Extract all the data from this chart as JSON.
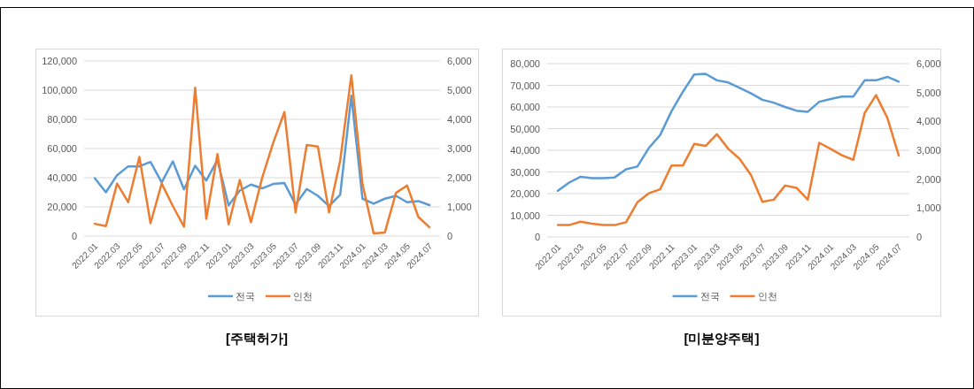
{
  "chart_data": [
    {
      "type": "line",
      "title": "[주택허가]",
      "categories": [
        "2022.01",
        null,
        "2022.03",
        null,
        "2022.05",
        null,
        "2022.07",
        null,
        "2022.09",
        null,
        "2022.11",
        null,
        "2023.01",
        null,
        "2023.03",
        null,
        "2023.05",
        null,
        "2023.07",
        null,
        "2023.09",
        null,
        "2023.11",
        null,
        "2024.01",
        null,
        "2024.03",
        null,
        "2024.05",
        null,
        "2024.07"
      ],
      "series": [
        {
          "name": "전국",
          "color": "#5b9bd5",
          "values": [
            39700,
            30000,
            41700,
            47800,
            47800,
            50800,
            36700,
            51200,
            32000,
            48200,
            38100,
            52200,
            21000,
            31200,
            35300,
            32700,
            35700,
            36300,
            21600,
            32300,
            27600,
            20600,
            28200,
            96200,
            25600,
            22200,
            25600,
            27600,
            23200,
            24000,
            21200
          ]
        },
        {
          "name": "인천",
          "color": "#ed7d31",
          "axis": "y2",
          "values": [
            420,
            340,
            1800,
            1160,
            2710,
            440,
            1800,
            1030,
            320,
            5080,
            590,
            2810,
            400,
            1920,
            470,
            1990,
            3200,
            4250,
            810,
            3120,
            3070,
            810,
            2590,
            5510,
            1780,
            90,
            120,
            1480,
            1730,
            660,
            300
          ]
        }
      ],
      "ylim": [
        0,
        120000
      ],
      "yticks": [
        0,
        {
          "value": 20000,
          "label": "20,000"
        },
        {
          "value": 40000,
          "label": "40,000"
        },
        {
          "value": 60000,
          "label": "60,000"
        },
        {
          "value": 80000,
          "label": "80,000"
        },
        {
          "value": 100000,
          "label": "100,000"
        },
        {
          "value": 120000,
          "label": "120,000"
        }
      ],
      "y2lim": [
        0,
        6000
      ],
      "y2ticks": [
        0,
        {
          "value": 1000,
          "label": "1,000"
        },
        {
          "value": 2000,
          "label": "2,000"
        },
        {
          "value": 3000,
          "label": "3,000"
        },
        {
          "value": 4000,
          "label": "4,000"
        },
        {
          "value": 5000,
          "label": "5,000"
        },
        {
          "value": 6000,
          "label": "6,000"
        }
      ],
      "grid": "y",
      "legend": "bottom"
    },
    {
      "type": "line",
      "title": "[미분양주택]",
      "categories": [
        "2022.01",
        null,
        "2022.03",
        null,
        "2022.05",
        null,
        "2022.07",
        null,
        "2022.09",
        null,
        "2022.11",
        null,
        "2023.01",
        null,
        "2023.03",
        null,
        "2023.05",
        null,
        "2023.07",
        null,
        "2023.09",
        null,
        "2023.11",
        null,
        "2024.01",
        null,
        "2024.03",
        null,
        "2024.05",
        null,
        "2024.07"
      ],
      "series": [
        {
          "name": "전국",
          "color": "#5b9bd5",
          "values": [
            21300,
            25100,
            27800,
            27100,
            27100,
            27500,
            31200,
            32500,
            41000,
            47000,
            58000,
            67000,
            75000,
            75300,
            72300,
            71300,
            68800,
            66300,
            63300,
            62000,
            60000,
            58300,
            57800,
            62400,
            63700,
            64800,
            64800,
            72300,
            72300,
            73900,
            71700
          ]
        },
        {
          "name": "인천",
          "color": "#ed7d31",
          "axis": "y2",
          "values": [
            410,
            410,
            530,
            460,
            410,
            410,
            510,
            1200,
            1510,
            1650,
            2470,
            2470,
            3220,
            3150,
            3560,
            3050,
            2700,
            2140,
            1220,
            1290,
            1780,
            1700,
            1290,
            3260,
            3050,
            2830,
            2670,
            4290,
            4910,
            4120,
            2820
          ]
        }
      ],
      "ylim": [
        0,
        80000
      ],
      "yticks": [
        0,
        {
          "value": 10000,
          "label": "10,000"
        },
        {
          "value": 20000,
          "label": "20,000"
        },
        {
          "value": 30000,
          "label": "30,000"
        },
        {
          "value": 40000,
          "label": "40,000"
        },
        {
          "value": 50000,
          "label": "50,000"
        },
        {
          "value": 60000,
          "label": "60,000"
        },
        {
          "value": 70000,
          "label": "70,000"
        },
        {
          "value": 80000,
          "label": "80,000"
        }
      ],
      "y2lim": [
        0,
        6000
      ],
      "y2ticks": [
        0,
        {
          "value": 1000,
          "label": "1,000"
        },
        {
          "value": 2000,
          "label": "2,000"
        },
        {
          "value": 3000,
          "label": "3,000"
        },
        {
          "value": 4000,
          "label": "4,000"
        },
        {
          "value": 5000,
          "label": "5,000"
        },
        {
          "value": 6000,
          "label": "6,000"
        }
      ],
      "grid": "y",
      "legend": "bottom"
    }
  ]
}
